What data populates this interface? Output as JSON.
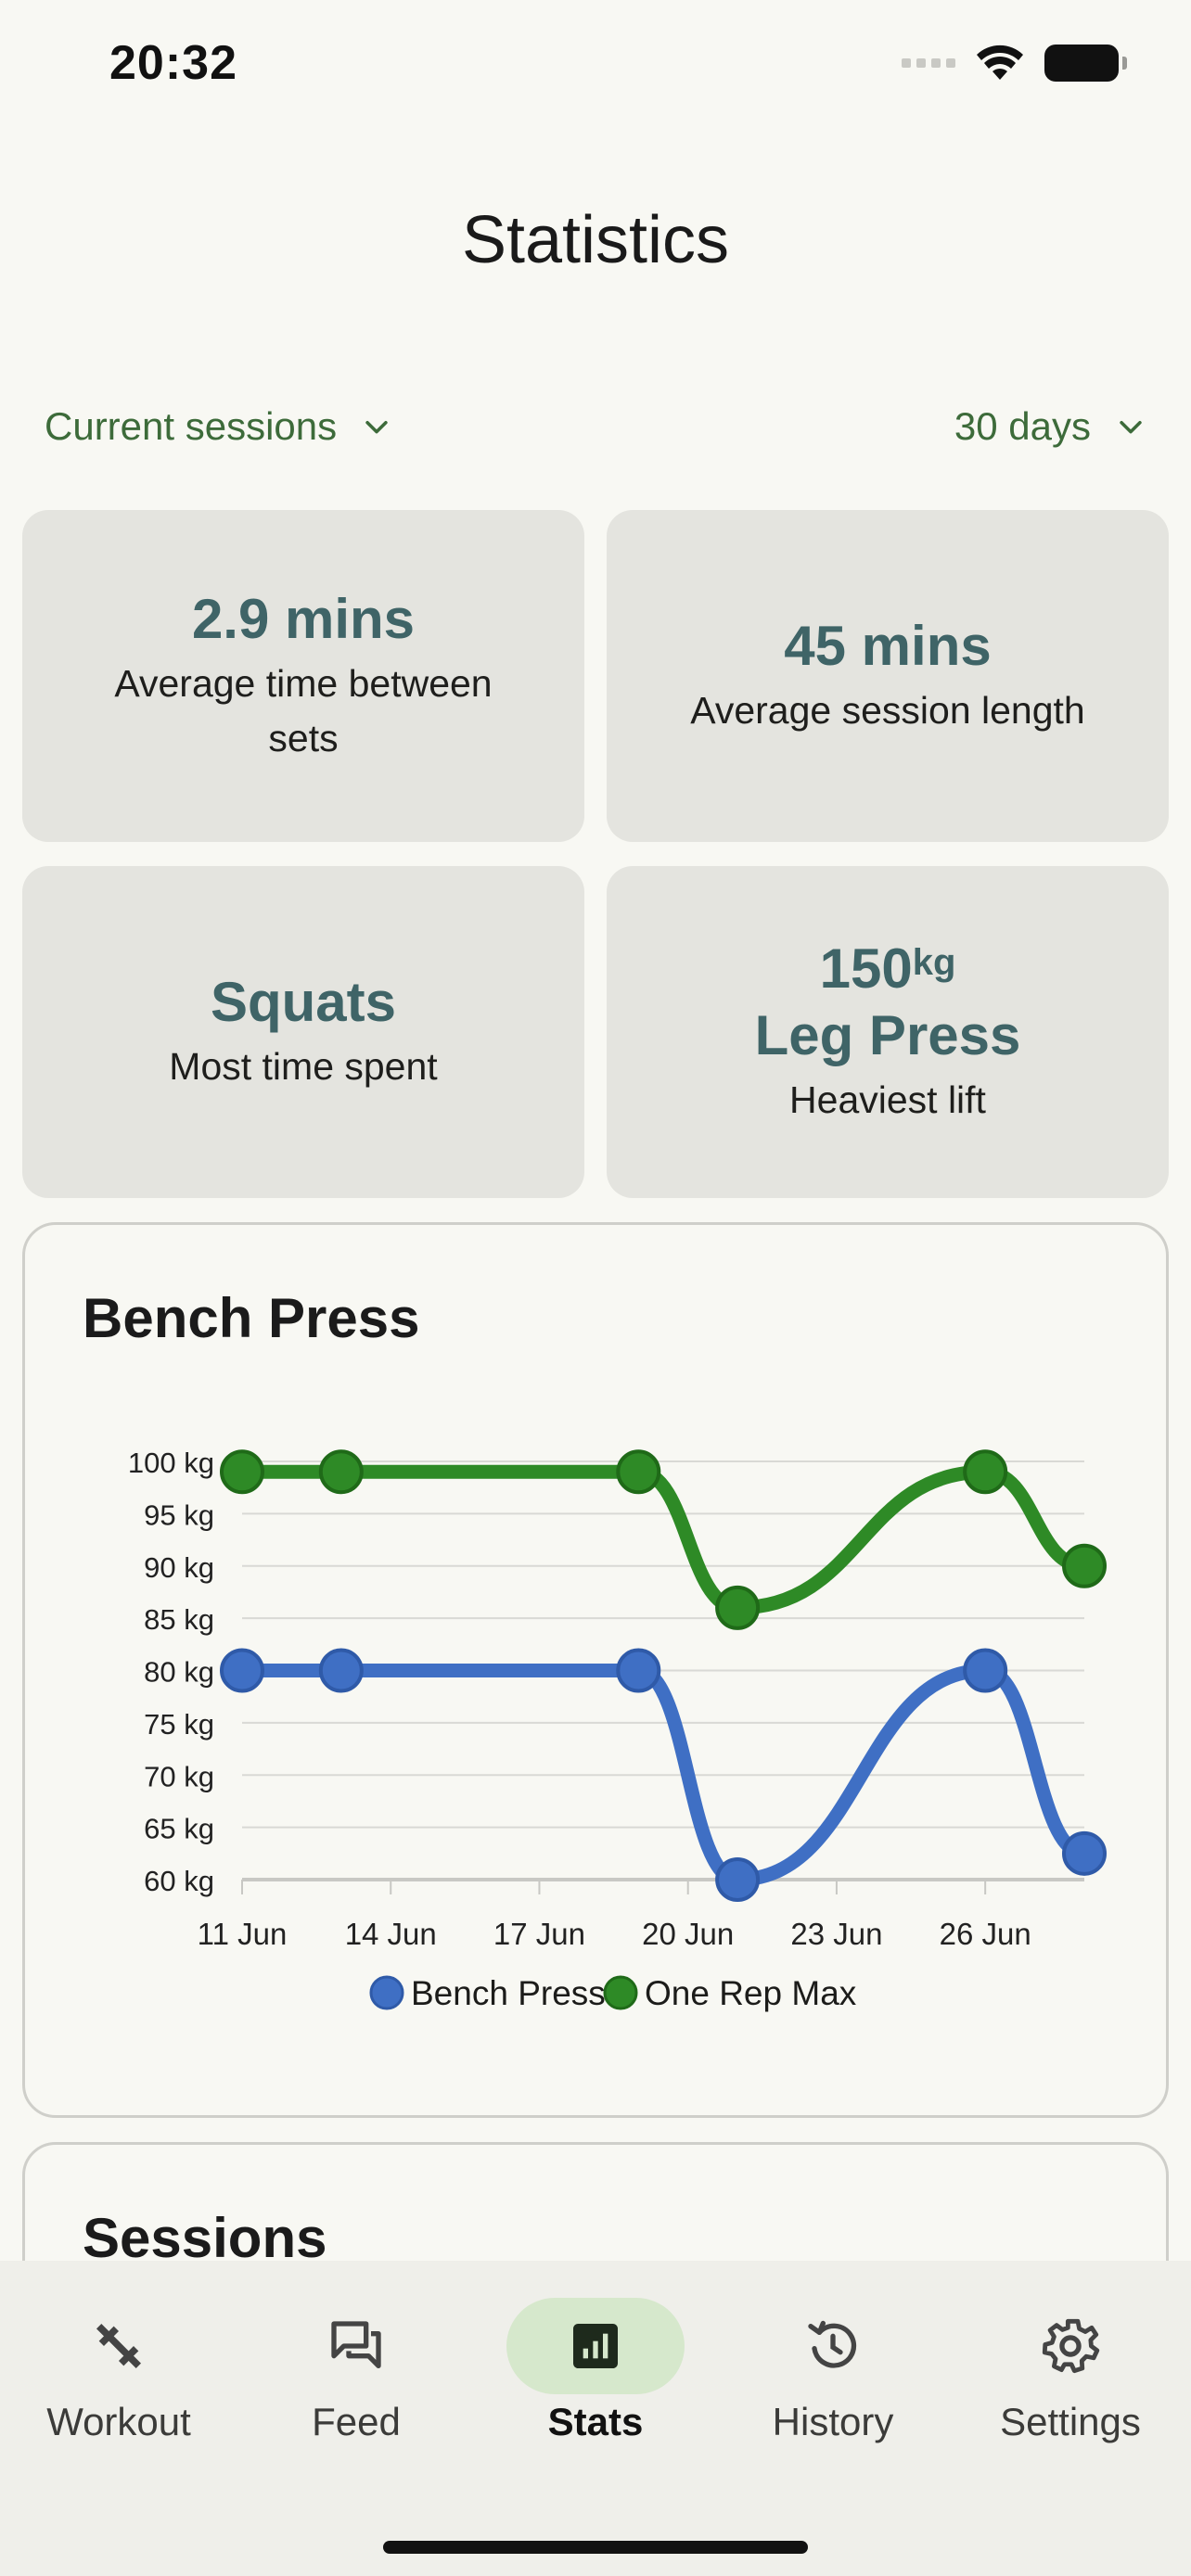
{
  "status_bar": {
    "time": "20:32"
  },
  "header": {
    "title": "Statistics"
  },
  "filters": {
    "session_filter": "Current sessions",
    "range_filter": "30 days"
  },
  "stats_cards": [
    {
      "value": "2.9 mins",
      "label": "Average time between sets"
    },
    {
      "value": "45 mins",
      "label": "Average session length"
    },
    {
      "value": "Squats",
      "label": "Most time spent"
    },
    {
      "value_number": "150",
      "value_unit": "kg",
      "value_name": "Leg Press",
      "label": "Heaviest lift"
    }
  ],
  "chart_card": {
    "title": "Bench Press"
  },
  "chart_data": {
    "type": "line",
    "title": "Bench Press",
    "x_tick_labels": [
      "11 Jun",
      "14 Jun",
      "17 Jun",
      "20 Jun",
      "23 Jun",
      "26 Jun"
    ],
    "y_tick_labels": [
      "60 kg",
      "65 kg",
      "70 kg",
      "75 kg",
      "80 kg",
      "85 kg",
      "90 kg",
      "95 kg",
      "100 kg"
    ],
    "xlim": [
      "2024-06-11",
      "2024-06-28"
    ],
    "ylim": [
      60,
      100
    ],
    "grid": true,
    "legend_position": "bottom",
    "series": [
      {
        "name": "Bench Press",
        "color": "#3f6fc4",
        "points": [
          {
            "x": "2024-06-11",
            "y": 80
          },
          {
            "x": "2024-06-13",
            "y": 80
          },
          {
            "x": "2024-06-19",
            "y": 80
          },
          {
            "x": "2024-06-21",
            "y": 60
          },
          {
            "x": "2024-06-26",
            "y": 80
          },
          {
            "x": "2024-06-28",
            "y": 62.5
          }
        ]
      },
      {
        "name": "One Rep Max",
        "color": "#2e8a26",
        "points": [
          {
            "x": "2024-06-11",
            "y": 99
          },
          {
            "x": "2024-06-13",
            "y": 99
          },
          {
            "x": "2024-06-19",
            "y": 99
          },
          {
            "x": "2024-06-21",
            "y": 86
          },
          {
            "x": "2024-06-26",
            "y": 99
          },
          {
            "x": "2024-06-28",
            "y": 90
          }
        ]
      }
    ]
  },
  "sessions_card": {
    "title": "Sessions"
  },
  "tabbar": {
    "items": [
      {
        "label": "Workout",
        "icon": "dumbbell-icon"
      },
      {
        "label": "Feed",
        "icon": "chat-icon"
      },
      {
        "label": "Stats",
        "icon": "bar-chart-icon",
        "active": true
      },
      {
        "label": "History",
        "icon": "history-icon"
      },
      {
        "label": "Settings",
        "icon": "gear-icon"
      }
    ]
  }
}
